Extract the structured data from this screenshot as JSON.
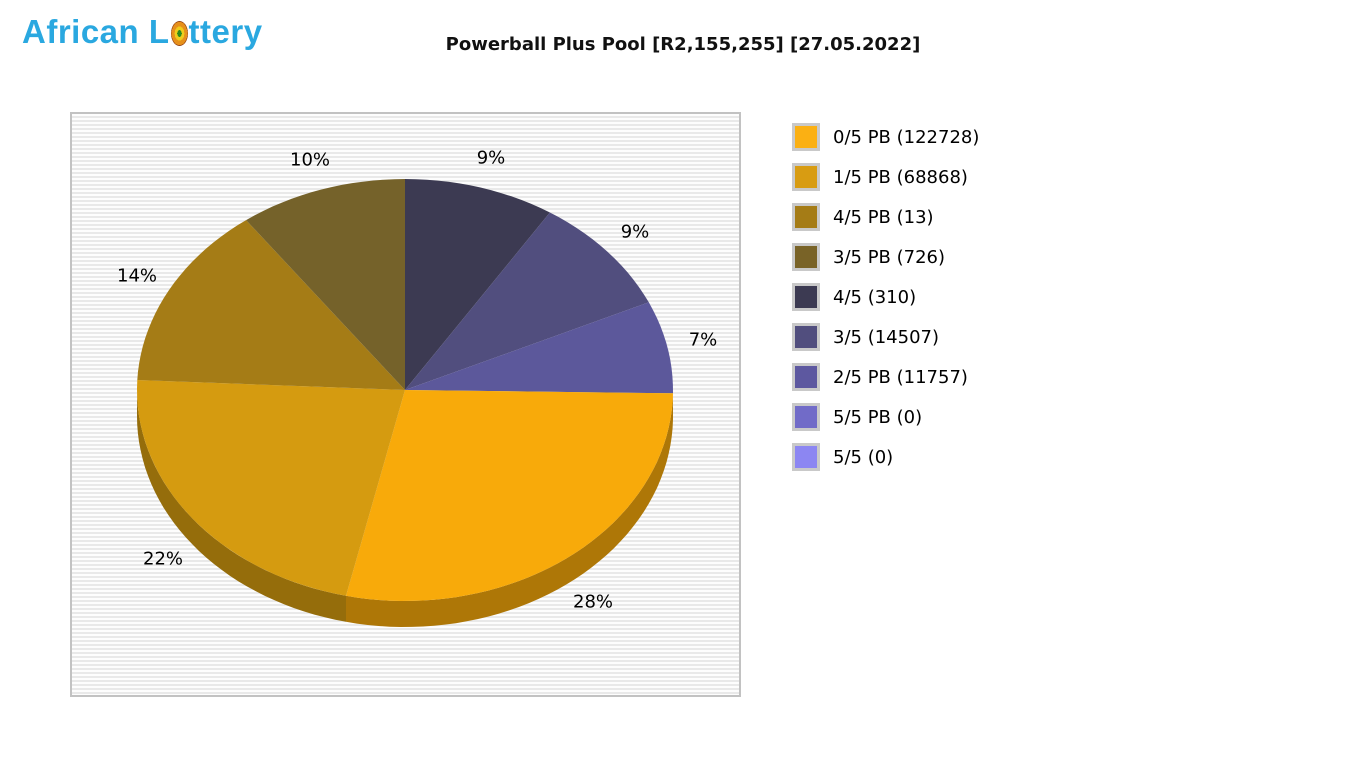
{
  "logo": {
    "prefix": "African L",
    "suffix": "ttery",
    "color": "#2aa8e0"
  },
  "header": {
    "title": "Powerball Plus Pool [R2,155,255] [27.05.2022]"
  },
  "chart_data": {
    "type": "pie",
    "style": "3d",
    "title": "Powerball Plus Pool [R2,155,255] [27.05.2022]",
    "pool_amount": "R2,155,255",
    "draw_date": "27.05.2022",
    "start_angle_deg": 0,
    "direction": "clockwise",
    "background": "horizontal-stripes",
    "legend_position": "right",
    "slices": [
      {
        "label": "4/5 (310)",
        "percent": 9,
        "color": "#3c3a52"
      },
      {
        "label": "3/5 (14507)",
        "percent": 9,
        "color": "#514e7e"
      },
      {
        "label": "2/5 PB (11757)",
        "percent": 7,
        "color": "#5c589b"
      },
      {
        "label": "0/5 PB (122728)",
        "percent": 28,
        "color": "#f8aa0a"
      },
      {
        "label": "1/5 PB (68868)",
        "percent": 22,
        "color": "#d59b10"
      },
      {
        "label": "4/5 PB (13)",
        "percent": 14,
        "color": "#a57c16"
      },
      {
        "label": "3/5 PB (726)",
        "percent": 10,
        "color": "#75622a"
      }
    ],
    "legend": [
      {
        "label": "0/5 PB",
        "count": 122728,
        "text": "0/5 PB (122728)",
        "color": "#fbb013"
      },
      {
        "label": "1/5 PB",
        "count": 68868,
        "text": "1/5 PB (68868)",
        "color": "#d89c12"
      },
      {
        "label": "4/5 PB",
        "count": 13,
        "text": "4/5 PB (13)",
        "color": "#a57c16"
      },
      {
        "label": "3/5 PB",
        "count": 726,
        "text": "3/5 PB (726)",
        "color": "#796327"
      },
      {
        "label": "4/5",
        "count": 310,
        "text": "4/5 (310)",
        "color": "#3c3a52"
      },
      {
        "label": "3/5",
        "count": 14507,
        "text": "3/5 (14507)",
        "color": "#514e7e"
      },
      {
        "label": "2/5 PB",
        "count": 11757,
        "text": "2/5 PB (11757)",
        "color": "#5d58a0"
      },
      {
        "label": "5/5 PB",
        "count": 0,
        "text": "5/5 PB (0)",
        "color": "#716bc8"
      },
      {
        "label": "5/5",
        "count": 0,
        "text": "5/5 (0)",
        "color": "#8c86f2"
      }
    ]
  }
}
